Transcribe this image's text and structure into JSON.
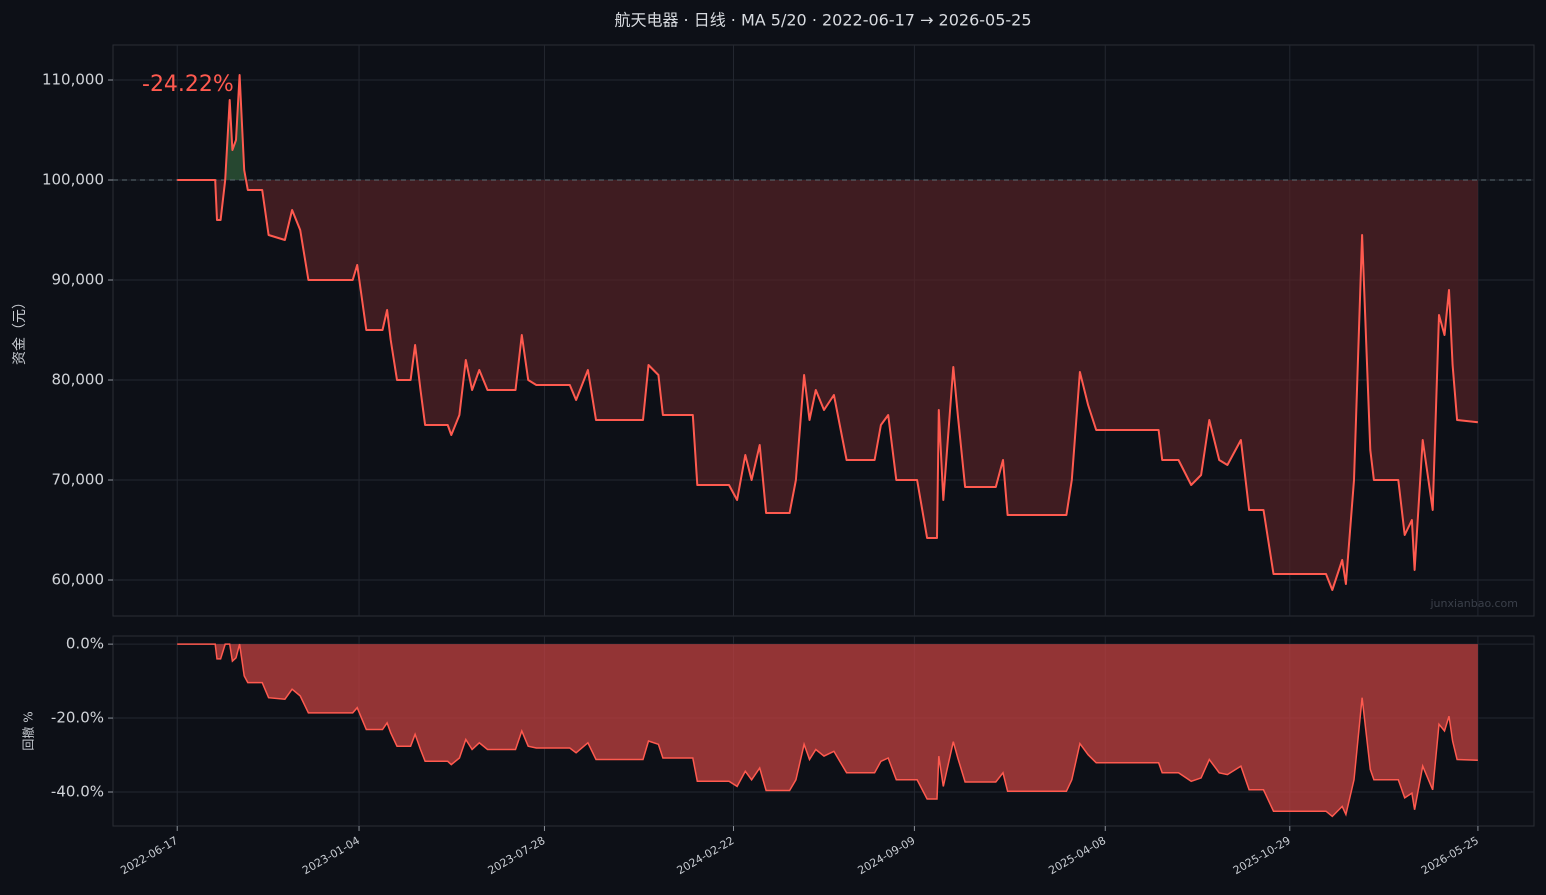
{
  "chart_data": [
    {
      "type": "line",
      "title": "航天电器 · 日线 · MA 5/20 · 2022-06-17 → 2026-05-25",
      "ylabel": "资金（元）",
      "annotation": "-24.22%",
      "watermark": "junxianbao.com",
      "color": "#ff5a4f",
      "baseline": 100000,
      "grid": true,
      "xlim": [
        "2022-04-07",
        "2026-07-26"
      ],
      "ylim": [
        56400,
        113500
      ],
      "yticks": [
        {
          "value": 60000,
          "label": "60,000"
        },
        {
          "value": 70000,
          "label": "70,000"
        },
        {
          "value": 80000,
          "label": "80,000"
        },
        {
          "value": 90000,
          "label": "90,000"
        },
        {
          "value": 100000,
          "label": "100,000"
        },
        {
          "value": 110000,
          "label": "110,000"
        }
      ],
      "x": [
        "2022-06-17",
        "2022-07-29",
        "2022-07-31",
        "2022-08-04",
        "2022-08-09",
        "2022-08-14",
        "2022-08-17",
        "2022-08-21",
        "2022-08-25",
        "2022-08-30",
        "2022-09-03",
        "2022-09-19",
        "2022-09-26",
        "2022-10-14",
        "2022-10-22",
        "2022-10-31",
        "2022-11-09",
        "2022-12-28",
        "2023-01-02",
        "2023-01-12",
        "2023-01-30",
        "2023-02-04",
        "2023-02-08",
        "2023-02-15",
        "2023-03-02",
        "2023-03-07",
        "2023-03-13",
        "2023-03-18",
        "2023-04-12",
        "2023-04-16",
        "2023-04-25",
        "2023-05-02",
        "2023-05-09",
        "2023-05-17",
        "2023-05-26",
        "2023-06-26",
        "2023-07-03",
        "2023-07-10",
        "2023-07-19",
        "2023-08-25",
        "2023-09-01",
        "2023-09-14",
        "2023-09-23",
        "2023-11-14",
        "2023-11-20",
        "2023-12-01",
        "2023-12-06",
        "2024-01-08",
        "2024-01-13",
        "2024-02-17",
        "2024-02-26",
        "2024-03-06",
        "2024-03-13",
        "2024-03-22",
        "2024-03-29",
        "2024-04-24",
        "2024-05-01",
        "2024-05-10",
        "2024-05-16",
        "2024-05-23",
        "2024-06-01",
        "2024-06-12",
        "2024-06-26",
        "2024-07-27",
        "2024-08-03",
        "2024-08-11",
        "2024-08-20",
        "2024-09-12",
        "2024-09-23",
        "2024-10-04",
        "2024-10-06",
        "2024-10-11",
        "2024-10-22",
        "2024-10-27",
        "2024-11-04",
        "2024-12-08",
        "2024-12-16",
        "2024-12-21",
        "2025-02-24",
        "2025-03-02",
        "2025-03-11",
        "2025-03-20",
        "2025-03-29",
        "2025-06-06",
        "2025-06-10",
        "2025-06-28",
        "2025-07-12",
        "2025-07-23",
        "2025-08-01",
        "2025-08-12",
        "2025-08-21",
        "2025-09-05",
        "2025-09-14",
        "2025-09-30",
        "2025-10-11",
        "2025-12-08",
        "2025-12-15",
        "2025-12-26",
        "2025-12-30",
        "2026-01-08",
        "2026-01-17",
        "2026-01-26",
        "2026-01-30",
        "2026-02-26",
        "2026-03-05",
        "2026-03-13",
        "2026-03-16",
        "2026-03-25",
        "2026-04-05",
        "2026-04-12",
        "2026-04-18",
        "2026-04-23",
        "2026-04-27",
        "2026-05-02",
        "2026-05-25"
      ],
      "values": [
        100000,
        100000,
        96000,
        96000,
        100000,
        108000,
        103000,
        104000,
        110500,
        101000,
        99000,
        99000,
        94500,
        94000,
        97000,
        95000,
        90000,
        90000,
        91500,
        85000,
        85000,
        87000,
        84000,
        80000,
        80000,
        83500,
        79000,
        75500,
        75500,
        74500,
        76500,
        82000,
        79000,
        81000,
        79000,
        79000,
        84500,
        80000,
        79500,
        79500,
        78000,
        81000,
        76000,
        76000,
        81500,
        80500,
        76500,
        76500,
        69500,
        69500,
        68000,
        72500,
        70000,
        73500,
        66700,
        66700,
        70000,
        80500,
        76000,
        79000,
        77000,
        78500,
        72000,
        72000,
        75500,
        76500,
        70000,
        70000,
        64200,
        64200,
        77000,
        68000,
        81300,
        76500,
        69300,
        69300,
        72000,
        66500,
        66500,
        70000,
        80800,
        77500,
        75000,
        75000,
        72000,
        72000,
        69500,
        70500,
        76000,
        72000,
        71500,
        74000,
        67000,
        67000,
        60600,
        60600,
        59000,
        62000,
        59600,
        70000,
        94500,
        73000,
        70000,
        70000,
        64500,
        66000,
        61000,
        74000,
        67000,
        86500,
        84500,
        89000,
        81500,
        76000,
        75780
      ]
    },
    {
      "type": "area",
      "ylabel": "回撤 %",
      "color": "#ff5a4f",
      "grid": true,
      "xlim": [
        "2022-04-07",
        "2026-07-26"
      ],
      "xticks": [
        "2022-06-17",
        "2023-01-04",
        "2023-07-28",
        "2024-02-22",
        "2024-09-09",
        "2025-04-08",
        "2025-10-29",
        "2026-05-25"
      ],
      "ylim": [
        -49.2,
        2.2
      ],
      "yticks": [
        {
          "value": -40,
          "label": "-40.0%"
        },
        {
          "value": -20,
          "label": "-20.0%"
        },
        {
          "value": 0,
          "label": "0.0%"
        }
      ],
      "x": [
        "2022-06-17",
        "2022-07-29",
        "2022-07-31",
        "2022-08-04",
        "2022-08-09",
        "2022-08-14",
        "2022-08-17",
        "2022-08-21",
        "2022-08-25",
        "2022-08-30",
        "2022-09-03",
        "2022-09-19",
        "2022-09-26",
        "2022-10-14",
        "2022-10-22",
        "2022-10-31",
        "2022-11-09",
        "2022-12-28",
        "2023-01-02",
        "2023-01-12",
        "2023-01-30",
        "2023-02-04",
        "2023-02-08",
        "2023-02-15",
        "2023-03-02",
        "2023-03-07",
        "2023-03-13",
        "2023-03-18",
        "2023-04-12",
        "2023-04-16",
        "2023-04-25",
        "2023-05-02",
        "2023-05-09",
        "2023-05-17",
        "2023-05-26",
        "2023-06-26",
        "2023-07-03",
        "2023-07-10",
        "2023-07-19",
        "2023-08-25",
        "2023-09-01",
        "2023-09-14",
        "2023-09-23",
        "2023-11-14",
        "2023-11-20",
        "2023-12-01",
        "2023-12-06",
        "2024-01-08",
        "2024-01-13",
        "2024-02-17",
        "2024-02-26",
        "2024-03-06",
        "2024-03-13",
        "2024-03-22",
        "2024-03-29",
        "2024-04-24",
        "2024-05-01",
        "2024-05-10",
        "2024-05-16",
        "2024-05-23",
        "2024-06-01",
        "2024-06-12",
        "2024-06-26",
        "2024-07-27",
        "2024-08-03",
        "2024-08-11",
        "2024-08-20",
        "2024-09-12",
        "2024-09-23",
        "2024-10-04",
        "2024-10-06",
        "2024-10-11",
        "2024-10-22",
        "2024-10-27",
        "2024-11-04",
        "2024-12-08",
        "2024-12-16",
        "2024-12-21",
        "2025-02-24",
        "2025-03-02",
        "2025-03-11",
        "2025-03-20",
        "2025-03-29",
        "2025-06-06",
        "2025-06-10",
        "2025-06-28",
        "2025-07-12",
        "2025-07-23",
        "2025-08-01",
        "2025-08-12",
        "2025-08-21",
        "2025-09-05",
        "2025-09-14",
        "2025-09-30",
        "2025-10-11",
        "2025-12-08",
        "2025-12-15",
        "2025-12-26",
        "2025-12-30",
        "2026-01-08",
        "2026-01-17",
        "2026-01-26",
        "2026-01-30",
        "2026-02-26",
        "2026-03-05",
        "2026-03-13",
        "2026-03-16",
        "2026-03-25",
        "2026-04-05",
        "2026-04-12",
        "2026-04-18",
        "2026-04-23",
        "2026-04-27",
        "2026-05-02",
        "2026-05-25"
      ],
      "values": [
        0,
        0,
        -4.0,
        -4.0,
        0,
        0,
        -4.6,
        -3.7,
        0,
        -8.6,
        -10.4,
        -10.4,
        -14.5,
        -14.9,
        -12.2,
        -14.0,
        -18.6,
        -18.6,
        -17.2,
        -23.1,
        -23.1,
        -21.3,
        -24.0,
        -27.6,
        -27.6,
        -24.4,
        -28.5,
        -31.7,
        -31.7,
        -32.6,
        -30.8,
        -25.8,
        -28.5,
        -26.7,
        -28.5,
        -28.5,
        -23.5,
        -27.6,
        -28.1,
        -28.1,
        -29.4,
        -26.7,
        -31.2,
        -31.2,
        -26.2,
        -27.1,
        -30.8,
        -30.8,
        -37.1,
        -37.1,
        -38.5,
        -34.4,
        -36.7,
        -33.5,
        -39.6,
        -39.6,
        -36.7,
        -27.1,
        -31.2,
        -28.5,
        -30.3,
        -29.0,
        -34.8,
        -34.8,
        -31.7,
        -30.8,
        -36.7,
        -36.7,
        -41.9,
        -41.9,
        -30.3,
        -38.5,
        -26.4,
        -30.8,
        -37.3,
        -37.3,
        -34.8,
        -39.8,
        -39.8,
        -36.7,
        -26.9,
        -29.9,
        -32.1,
        -32.1,
        -34.8,
        -34.8,
        -37.1,
        -36.2,
        -31.2,
        -34.8,
        -35.3,
        -33.0,
        -39.4,
        -39.4,
        -45.2,
        -45.2,
        -46.6,
        -43.9,
        -46.1,
        -36.7,
        -14.5,
        -33.9,
        -36.7,
        -36.7,
        -41.6,
        -40.3,
        -44.8,
        -33.0,
        -39.4,
        -21.7,
        -23.5,
        -19.5,
        -26.2,
        -31.2,
        -31.4
      ]
    }
  ]
}
